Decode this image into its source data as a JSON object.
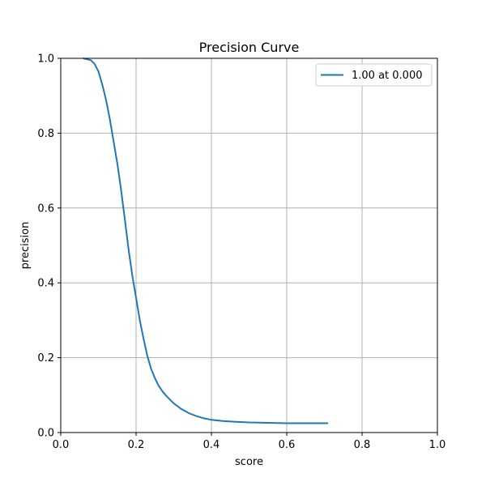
{
  "chart_data": {
    "type": "line",
    "title": "Precision Curve",
    "xlabel": "score",
    "ylabel": "precision",
    "xlim": [
      0.0,
      1.0
    ],
    "ylim": [
      0.0,
      1.0
    ],
    "xticks": [
      "0.0",
      "0.2",
      "0.4",
      "0.6",
      "0.8",
      "1.0"
    ],
    "yticks": [
      "0.0",
      "0.2",
      "0.4",
      "0.6",
      "0.8",
      "1.0"
    ],
    "grid": true,
    "legend_position": "top-right",
    "series": [
      {
        "name": "1.00 at 0.000",
        "color": "#1f77b4",
        "x": [
          0.06,
          0.08,
          0.09,
          0.1,
          0.11,
          0.12,
          0.13,
          0.14,
          0.15,
          0.16,
          0.17,
          0.18,
          0.19,
          0.2,
          0.21,
          0.22,
          0.23,
          0.24,
          0.25,
          0.26,
          0.27,
          0.28,
          0.29,
          0.3,
          0.32,
          0.34,
          0.36,
          0.38,
          0.4,
          0.43,
          0.46,
          0.5,
          0.55,
          0.6,
          0.65,
          0.7,
          0.71
        ],
        "y": [
          1.0,
          0.995,
          0.985,
          0.965,
          0.93,
          0.89,
          0.84,
          0.78,
          0.72,
          0.65,
          0.57,
          0.49,
          0.42,
          0.36,
          0.3,
          0.25,
          0.205,
          0.17,
          0.145,
          0.125,
          0.11,
          0.098,
          0.088,
          0.078,
          0.063,
          0.052,
          0.044,
          0.038,
          0.034,
          0.031,
          0.029,
          0.027,
          0.026,
          0.025,
          0.025,
          0.025,
          0.025
        ]
      }
    ]
  }
}
